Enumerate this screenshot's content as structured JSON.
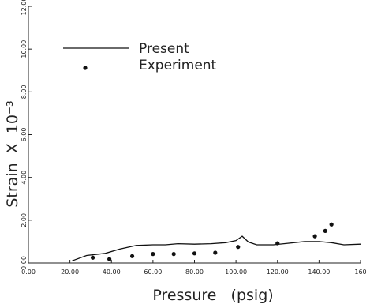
{
  "chart_data": {
    "type": "line",
    "xlabel": "Pressure   (psig)",
    "ylabel": "Strain  X  10⁻³",
    "xlim": [
      0,
      160
    ],
    "ylim": [
      0,
      12
    ],
    "x_ticks": [
      "0.00",
      "20.00",
      "40.00",
      "60.00",
      "80.00",
      "100.00",
      "120.00",
      "140.00",
      "160"
    ],
    "y_ticks": [
      "0.00",
      "2.00",
      "4.00",
      "6.00",
      "8.00",
      "10.00",
      "12.00"
    ],
    "grid": false,
    "legend_position": "top-left",
    "series": [
      {
        "name": "Present",
        "style": "line",
        "color": "#111111",
        "x": [
          21,
          28,
          37,
          44,
          52,
          60,
          66,
          72,
          80,
          88,
          95,
          100,
          103,
          106,
          110,
          118,
          125,
          133,
          140,
          146,
          152,
          160
        ],
        "y": [
          0.1,
          0.35,
          0.45,
          0.65,
          0.82,
          0.85,
          0.85,
          0.9,
          0.88,
          0.9,
          0.95,
          1.05,
          1.25,
          0.98,
          0.85,
          0.85,
          0.92,
          1.0,
          1.0,
          0.95,
          0.85,
          0.88
        ]
      },
      {
        "name": "Experiment",
        "style": "marker",
        "color": "#111111",
        "x": [
          31,
          39,
          50,
          60,
          70,
          80,
          90,
          101,
          120,
          138,
          143,
          146
        ],
        "y": [
          0.25,
          0.18,
          0.32,
          0.42,
          0.42,
          0.45,
          0.48,
          0.75,
          0.92,
          1.25,
          1.5,
          1.8
        ]
      }
    ]
  }
}
